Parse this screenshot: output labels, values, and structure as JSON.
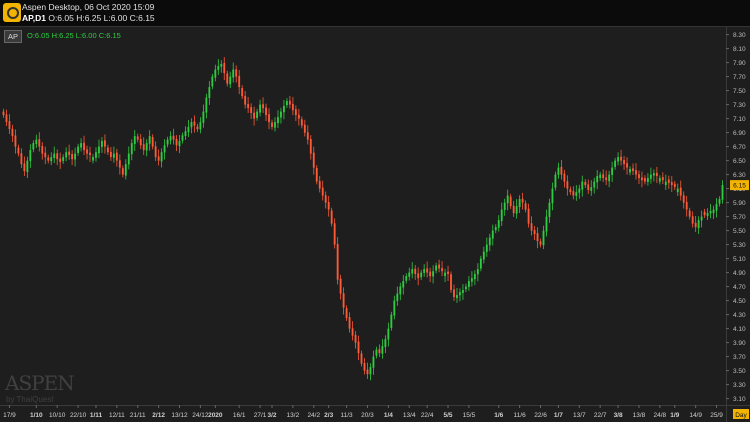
{
  "window": {
    "title": "Aspen Desktop, 06 Oct 2020 15:09",
    "symbol_label": "AP,D1",
    "ohlc": "O:6.05 H:6.25 L:6.00 C:6.15"
  },
  "legend": {
    "symbol": "AP",
    "ohlc": "O:6.05 H:6.25 L:6.00 C:6.15"
  },
  "watermark": {
    "brand": "ASPEN",
    "byline": "by ThaiQuest"
  },
  "colors": {
    "background": "#1e1e1e",
    "up": "#2ecc40",
    "down": "#ff5a36",
    "price_tag": "#f2b400",
    "grid": "#2a2a2a"
  },
  "chart_data": {
    "type": "candlestick",
    "ylim": [
      3.2,
      8.35
    ],
    "yticks": [
      "8.30",
      "8.10",
      "7.90",
      "7.70",
      "7.50",
      "7.30",
      "7.10",
      "6.90",
      "6.70",
      "6.50",
      "6.30",
      "6.10",
      "5.90",
      "5.70",
      "5.50",
      "5.30",
      "5.10",
      "4.90",
      "4.70",
      "4.50",
      "4.30",
      "4.10",
      "3.90",
      "3.70",
      "3.50",
      "3.30",
      "3.10"
    ],
    "xticks": [
      {
        "label": "17/9",
        "i": 2,
        "bold": false
      },
      {
        "label": "1/10",
        "i": 11,
        "bold": true
      },
      {
        "label": "10/10",
        "i": 18,
        "bold": false
      },
      {
        "label": "22/10",
        "i": 25,
        "bold": false
      },
      {
        "label": "1/11",
        "i": 31,
        "bold": true
      },
      {
        "label": "12/11",
        "i": 38,
        "bold": false
      },
      {
        "label": "21/11",
        "i": 45,
        "bold": false
      },
      {
        "label": "2/12",
        "i": 52,
        "bold": true
      },
      {
        "label": "13/12",
        "i": 59,
        "bold": false
      },
      {
        "label": "24/12",
        "i": 66,
        "bold": false
      },
      {
        "label": "2020",
        "i": 71,
        "bold": true
      },
      {
        "label": "16/1",
        "i": 79,
        "bold": false
      },
      {
        "label": "27/1",
        "i": 86,
        "bold": false
      },
      {
        "label": "3/2",
        "i": 90,
        "bold": true
      },
      {
        "label": "13/2",
        "i": 97,
        "bold": false
      },
      {
        "label": "24/2",
        "i": 104,
        "bold": false
      },
      {
        "label": "2/3",
        "i": 109,
        "bold": true
      },
      {
        "label": "11/3",
        "i": 115,
        "bold": false
      },
      {
        "label": "20/3",
        "i": 122,
        "bold": false
      },
      {
        "label": "1/4",
        "i": 129,
        "bold": true
      },
      {
        "label": "13/4",
        "i": 136,
        "bold": false
      },
      {
        "label": "22/4",
        "i": 142,
        "bold": false
      },
      {
        "label": "5/5",
        "i": 149,
        "bold": true
      },
      {
        "label": "15/5",
        "i": 156,
        "bold": false
      },
      {
        "label": "1/6",
        "i": 166,
        "bold": true
      },
      {
        "label": "11/6",
        "i": 173,
        "bold": false
      },
      {
        "label": "22/6",
        "i": 180,
        "bold": false
      },
      {
        "label": "1/7",
        "i": 186,
        "bold": true
      },
      {
        "label": "13/7",
        "i": 193,
        "bold": false
      },
      {
        "label": "22/7",
        "i": 200,
        "bold": false
      },
      {
        "label": "3/8",
        "i": 206,
        "bold": true
      },
      {
        "label": "13/8",
        "i": 213,
        "bold": false
      },
      {
        "label": "24/8",
        "i": 220,
        "bold": false
      },
      {
        "label": "1/9",
        "i": 225,
        "bold": true
      },
      {
        "label": "14/9",
        "i": 232,
        "bold": false
      },
      {
        "label": "25/9",
        "i": 239,
        "bold": false
      }
    ],
    "x_unit_label": "Day",
    "last_price": "6.15",
    "close": [
      7.15,
      7.05,
      6.95,
      6.85,
      6.7,
      6.6,
      6.45,
      6.35,
      6.5,
      6.65,
      6.75,
      6.8,
      6.7,
      6.6,
      6.55,
      6.5,
      6.55,
      6.6,
      6.52,
      6.48,
      6.55,
      6.62,
      6.58,
      6.52,
      6.6,
      6.7,
      6.75,
      6.65,
      6.6,
      6.58,
      6.55,
      6.62,
      6.7,
      6.78,
      6.7,
      6.62,
      6.55,
      6.6,
      6.5,
      6.4,
      6.3,
      6.45,
      6.6,
      6.75,
      6.85,
      6.8,
      6.72,
      6.65,
      6.75,
      6.85,
      6.7,
      6.55,
      6.5,
      6.62,
      6.72,
      6.8,
      6.85,
      6.8,
      6.72,
      6.78,
      6.86,
      6.92,
      6.98,
      7.05,
      7.0,
      6.95,
      7.05,
      7.2,
      7.4,
      7.55,
      7.7,
      7.8,
      7.85,
      7.88,
      7.75,
      7.6,
      7.7,
      7.8,
      7.7,
      7.55,
      7.42,
      7.3,
      7.25,
      7.18,
      7.1,
      7.2,
      7.3,
      7.25,
      7.15,
      7.05,
      6.98,
      7.05,
      7.12,
      7.2,
      7.28,
      7.35,
      7.3,
      7.22,
      7.15,
      7.1,
      7.0,
      6.9,
      6.8,
      6.6,
      6.4,
      6.2,
      6.1,
      6.0,
      5.9,
      5.8,
      5.6,
      5.3,
      4.8,
      4.6,
      4.4,
      4.25,
      4.1,
      4.0,
      3.9,
      3.75,
      3.6,
      3.5,
      3.45,
      3.55,
      3.7,
      3.8,
      3.75,
      3.85,
      3.95,
      4.1,
      4.3,
      4.5,
      4.6,
      4.7,
      4.78,
      4.85,
      4.9,
      4.95,
      4.88,
      4.82,
      4.9,
      4.95,
      4.9,
      4.85,
      4.92,
      5.0,
      4.96,
      4.92,
      4.9,
      4.88,
      4.65,
      4.55,
      4.58,
      4.62,
      4.65,
      4.7,
      4.78,
      4.82,
      4.88,
      4.95,
      5.1,
      5.2,
      5.3,
      5.4,
      5.5,
      5.55,
      5.65,
      5.8,
      5.9,
      6.0,
      5.85,
      5.75,
      5.85,
      5.95,
      5.9,
      5.8,
      5.6,
      5.5,
      5.45,
      5.35,
      5.3,
      5.5,
      5.7,
      5.9,
      6.1,
      6.3,
      6.4,
      6.3,
      6.2,
      6.1,
      6.05,
      6.0,
      6.05,
      6.1,
      6.2,
      6.15,
      6.08,
      6.12,
      6.2,
      6.28,
      6.3,
      6.25,
      6.22,
      6.3,
      6.4,
      6.5,
      6.55,
      6.5,
      6.45,
      6.4,
      6.38,
      6.35,
      6.3,
      6.25,
      6.22,
      6.2,
      6.25,
      6.3,
      6.32,
      6.28,
      6.25,
      6.22,
      6.2,
      6.18,
      6.15,
      6.12,
      6.1,
      6.0,
      5.9,
      5.8,
      5.7,
      5.6,
      5.55,
      5.65,
      5.7,
      5.72,
      5.75,
      5.78,
      5.8,
      5.88,
      5.95,
      6.15
    ]
  }
}
